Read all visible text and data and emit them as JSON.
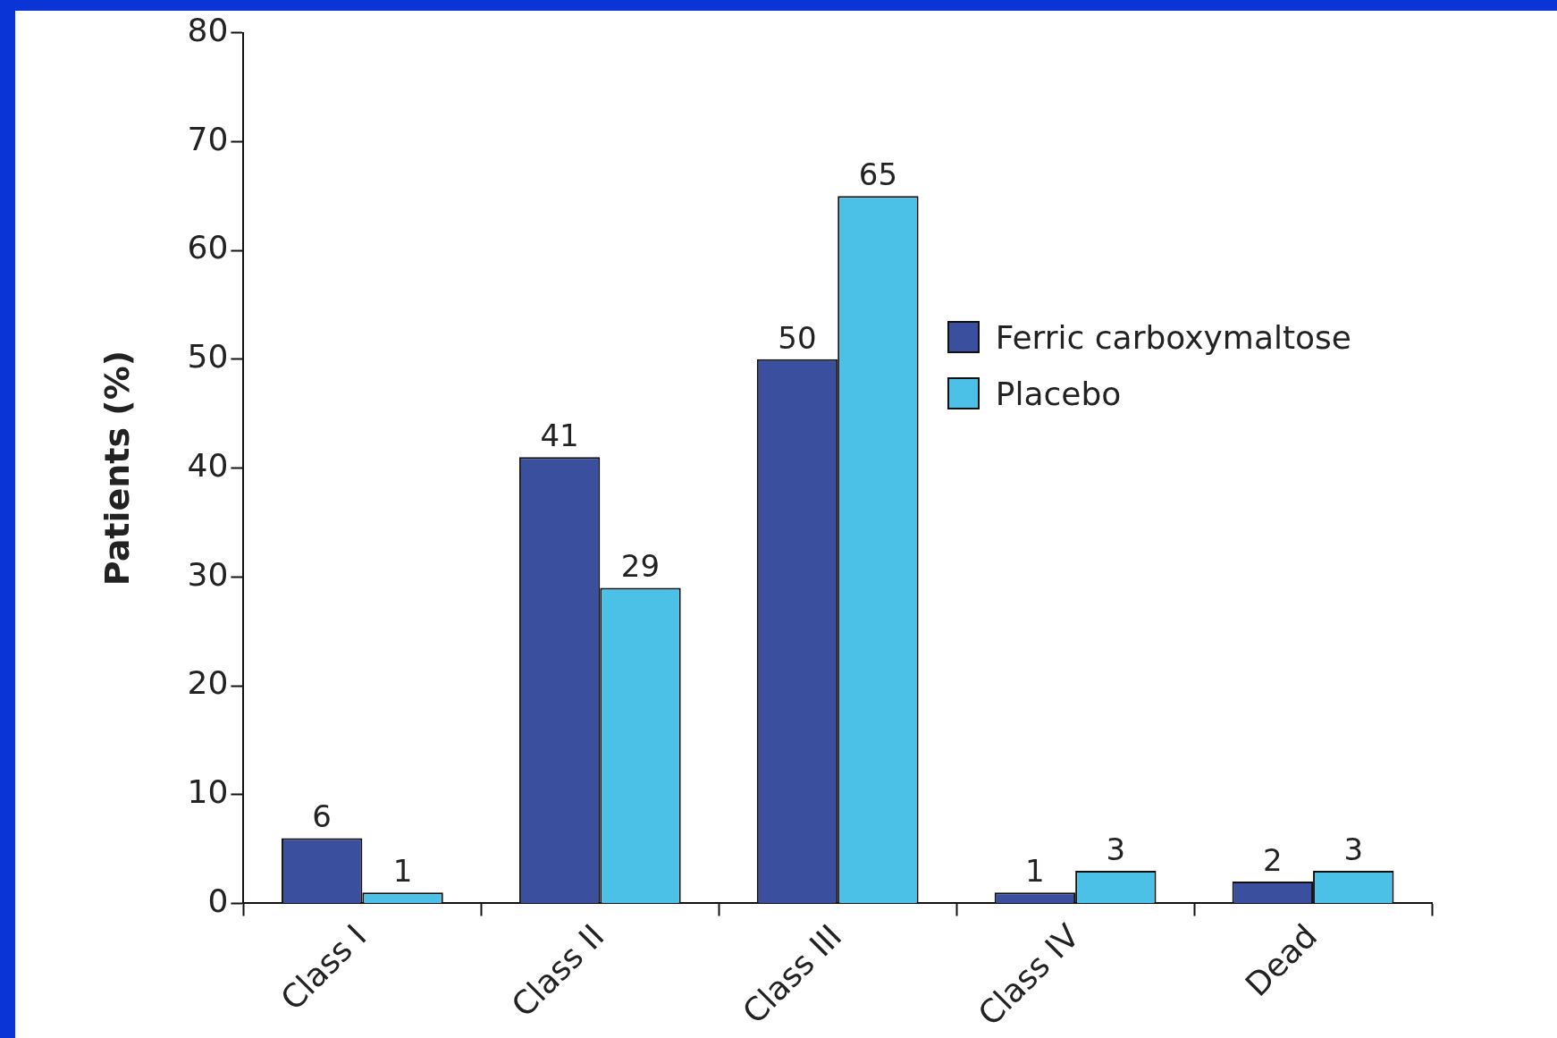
{
  "chart_data": {
    "type": "bar",
    "ylabel": "Patients (%)",
    "categories": [
      "Class I",
      "Class II",
      "Class III",
      "Class IV",
      "Dead"
    ],
    "series": [
      {
        "name": "Ferric carboxymaltose",
        "color": "#3b4f9f",
        "values": [
          6,
          41,
          50,
          1,
          2
        ]
      },
      {
        "name": "Placebo",
        "color": "#4bc1e8",
        "values": [
          1,
          29,
          65,
          3,
          3
        ]
      }
    ],
    "ylim": [
      0,
      80
    ],
    "yticks": [
      0,
      10,
      20,
      30,
      40,
      50,
      60,
      70,
      80
    ],
    "grid": false,
    "legend": "top right",
    "data_labels": true
  }
}
